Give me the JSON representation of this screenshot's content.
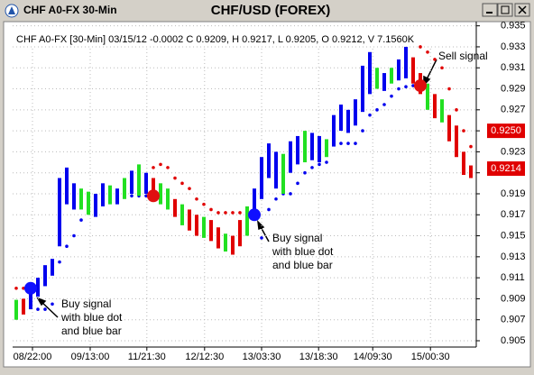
{
  "window": {
    "title": "CHF A0-FX 30-Min"
  },
  "chart_data": {
    "type": "ohlc",
    "title": "CHF/USD (FOREX)",
    "subtitle": "CHF A0-FX [30-Min] 03/15/12  -0.0002 C 0.9209, H 0.9217, L 0.9205, O 0.9212, V 7.1560K",
    "x": [
      0,
      1,
      2,
      3,
      4,
      5,
      6,
      7,
      8,
      9,
      10,
      11,
      12,
      13,
      14,
      15,
      16,
      17,
      18,
      19,
      20,
      21,
      22,
      23,
      24,
      25,
      26,
      27,
      28,
      29,
      30,
      31,
      32,
      33,
      34,
      35,
      36,
      37,
      38,
      39,
      40,
      41,
      42,
      43,
      44,
      45,
      46,
      47,
      48,
      49,
      50,
      51,
      52,
      53,
      54,
      55,
      56,
      57,
      58,
      59,
      60,
      61,
      62,
      63
    ],
    "high": [
      0.9089,
      0.909,
      0.9098,
      0.911,
      0.9122,
      0.9128,
      0.9205,
      0.9215,
      0.92,
      0.9195,
      0.9192,
      0.919,
      0.92,
      0.9198,
      0.9195,
      0.9205,
      0.9212,
      0.9218,
      0.921,
      0.9205,
      0.92,
      0.9195,
      0.9185,
      0.918,
      0.9175,
      0.917,
      0.9168,
      0.9165,
      0.9158,
      0.9152,
      0.915,
      0.9165,
      0.9178,
      0.9195,
      0.9225,
      0.9238,
      0.923,
      0.9228,
      0.924,
      0.9245,
      0.925,
      0.9248,
      0.9245,
      0.9242,
      0.9265,
      0.9275,
      0.927,
      0.928,
      0.9312,
      0.9325,
      0.931,
      0.9305,
      0.931,
      0.9318,
      0.933,
      0.932,
      0.9305,
      0.9295,
      0.9285,
      0.928,
      0.9265,
      0.9255,
      0.923,
      0.9217
    ],
    "low": [
      0.907,
      0.9075,
      0.908,
      0.9092,
      0.9102,
      0.9112,
      0.914,
      0.918,
      0.9175,
      0.9175,
      0.917,
      0.9168,
      0.9178,
      0.918,
      0.918,
      0.9185,
      0.919,
      0.9188,
      0.919,
      0.9185,
      0.918,
      0.9175,
      0.9168,
      0.916,
      0.9155,
      0.915,
      0.9148,
      0.9145,
      0.9138,
      0.9135,
      0.9132,
      0.914,
      0.915,
      0.9168,
      0.9185,
      0.9205,
      0.9195,
      0.919,
      0.921,
      0.9218,
      0.922,
      0.9222,
      0.922,
      0.9225,
      0.9235,
      0.925,
      0.9248,
      0.9255,
      0.9268,
      0.9285,
      0.929,
      0.9288,
      0.9295,
      0.9298,
      0.93,
      0.9295,
      0.9285,
      0.927,
      0.9262,
      0.9258,
      0.924,
      0.9225,
      0.9208,
      0.9205
    ],
    "bar_colors": [
      "G",
      "R",
      "B",
      "B",
      "B",
      "B",
      "B",
      "B",
      "B",
      "G",
      "G",
      "B",
      "B",
      "G",
      "B",
      "G",
      "B",
      "G",
      "B",
      "R",
      "G",
      "G",
      "R",
      "G",
      "R",
      "R",
      "G",
      "R",
      "R",
      "G",
      "R",
      "R",
      "G",
      "B",
      "B",
      "B",
      "B",
      "G",
      "B",
      "B",
      "G",
      "B",
      "B",
      "G",
      "B",
      "B",
      "B",
      "B",
      "B",
      "B",
      "G",
      "B",
      "G",
      "B",
      "B",
      "R",
      "R",
      "G",
      "R",
      "G",
      "R",
      "R",
      "R",
      "R"
    ],
    "palette": {
      "B": "#0000ee",
      "G": "#22e022",
      "R": "#e00000"
    },
    "buy_stop": [
      null,
      null,
      null,
      0.908,
      0.908,
      0.9085,
      0.9125,
      0.914,
      0.915,
      0.9165,
      0.9188,
      0.9188,
      0.9188,
      0.9188,
      0.9188,
      0.9188,
      0.9188,
      0.9188,
      0.9188,
      null,
      null,
      null,
      null,
      null,
      null,
      null,
      null,
      null,
      null,
      null,
      null,
      null,
      null,
      null,
      0.9148,
      0.9175,
      0.9185,
      0.919,
      0.919,
      0.92,
      0.921,
      0.9215,
      0.9218,
      0.922,
      0.9238,
      0.9238,
      0.9238,
      0.9238,
      0.925,
      0.9265,
      0.927,
      0.9275,
      0.9283,
      0.929,
      0.9292,
      0.9293,
      null,
      null,
      null,
      null,
      null,
      null,
      null,
      null
    ],
    "sell_stop": [
      0.91,
      0.91,
      0.91,
      null,
      null,
      null,
      null,
      null,
      null,
      null,
      null,
      null,
      null,
      null,
      null,
      null,
      null,
      null,
      null,
      0.9215,
      0.9218,
      0.9215,
      0.9205,
      0.92,
      0.9195,
      0.9185,
      0.918,
      0.9175,
      0.9172,
      0.9172,
      0.9172,
      0.9172,
      0.9172,
      null,
      null,
      null,
      null,
      null,
      null,
      null,
      null,
      null,
      null,
      null,
      null,
      null,
      null,
      null,
      null,
      null,
      null,
      null,
      null,
      null,
      null,
      null,
      0.933,
      0.9325,
      0.9318,
      0.931,
      0.929,
      0.927,
      0.925,
      0.9235
    ],
    "buy_stop_color": "#0000ee",
    "sell_stop_color": "#e00000",
    "buy_signals": {
      "x": [
        2,
        33
      ],
      "values": [
        0.91,
        0.917
      ],
      "color": "#1010ff"
    },
    "sell_signals": {
      "x": [
        19,
        56
      ],
      "values": [
        0.9188,
        0.9293
      ],
      "color": "#e01010"
    },
    "price_markers": [
      {
        "value": 0.925,
        "label": "0.9250"
      },
      {
        "value": 0.9214,
        "label": "0.9214"
      }
    ],
    "price_marker_color": "#e00000",
    "annotations": [
      {
        "lines": [
          "Buy signal",
          "with blue dot",
          "and blue bar"
        ]
      },
      {
        "lines": [
          "Buy signal",
          "with blue dot",
          "and blue bar"
        ]
      },
      {
        "lines": [
          "Sell signal"
        ]
      }
    ],
    "xlim": [
      -0.5,
      63.75
    ],
    "ylim": [
      0.9044,
      0.9354
    ],
    "yticks": [
      0.905,
      0.907,
      0.909,
      0.911,
      0.913,
      0.915,
      0.917,
      0.919,
      0.921,
      0.923,
      0.925,
      0.927,
      0.929,
      0.931,
      0.933,
      0.935
    ],
    "xticks": [
      {
        "value": 2.25,
        "label": "08/22:00"
      },
      {
        "value": 10.25,
        "label": "09/13:00"
      },
      {
        "value": 18.1,
        "label": "11/21:30"
      },
      {
        "value": 26.1,
        "label": "12/12:30"
      },
      {
        "value": 34,
        "label": "13/03:30"
      },
      {
        "value": 41.9,
        "label": "13/18:30"
      },
      {
        "value": 49.4,
        "label": "14/09:30"
      },
      {
        "value": 57.4,
        "label": "15/00:30"
      }
    ],
    "grid": true
  }
}
